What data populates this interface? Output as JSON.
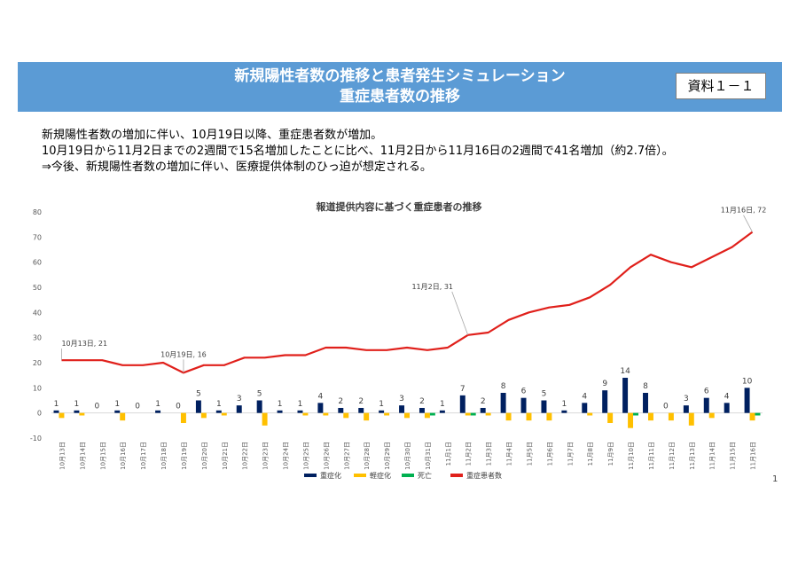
{
  "header": {
    "title_line1": "新規陽性者数の推移と患者発生シミュレーション",
    "title_line2": "重症患者数の推移",
    "doc_label": "資料１－１"
  },
  "summary": {
    "line1": "新規陽性者数の増加に伴い、10月19日以降、重症患者数が増加。",
    "line2": "10月19日から11月2日までの2週間で15名増加したことに比べ、11月2日から11月16日の2週間で41名増加（約2.7倍）。",
    "line3": "⇒今後、新規陽性者数の増加に伴い、医療提供体制のひっ迫が想定される。"
  },
  "page_number": "1",
  "colors": {
    "header_bg": "#5b9bd5",
    "severe": "#002060",
    "mild": "#ffc000",
    "death": "#00b050",
    "total": "#e0201b"
  },
  "chart_data": {
    "type": "bar+line",
    "title": "報道提供内容に基づく重症患者の推移",
    "ylim": [
      -10,
      80
    ],
    "yticks": [
      -10,
      0,
      10,
      20,
      30,
      40,
      50,
      60,
      70,
      80
    ],
    "grid": false,
    "legend_position": "bottom",
    "categories": [
      "10月13日",
      "10月14日",
      "10月15日",
      "10月16日",
      "10月17日",
      "10月18日",
      "10月19日",
      "10月20日",
      "10月21日",
      "10月22日",
      "10月23日",
      "10月24日",
      "10月25日",
      "10月26日",
      "10月27日",
      "10月28日",
      "10月29日",
      "10月30日",
      "10月31日",
      "11月1日",
      "11月2日",
      "11月3日",
      "11月4日",
      "11月5日",
      "11月6日",
      "11月7日",
      "11月8日",
      "11月9日",
      "11月10日",
      "11月11日",
      "11月12日",
      "11月13日",
      "11月14日",
      "11月15日",
      "11月16日"
    ],
    "series": [
      {
        "name": "重症化",
        "type": "bar",
        "values": [
          1,
          1,
          0,
          1,
          0,
          1,
          0,
          5,
          1,
          3,
          5,
          1,
          1,
          4,
          2,
          2,
          1,
          3,
          2,
          1,
          7,
          2,
          8,
          6,
          5,
          1,
          4,
          9,
          14,
          8,
          0,
          3,
          6,
          4,
          10
        ]
      },
      {
        "name": "軽症化",
        "type": "bar",
        "values": [
          -2,
          -1,
          0,
          -3,
          0,
          0,
          -4,
          -2,
          -1,
          0,
          -5,
          0,
          -1,
          -1,
          -2,
          -3,
          -1,
          -2,
          -2,
          0,
          -1,
          -1,
          -3,
          -3,
          -3,
          0,
          -1,
          -4,
          -6,
          -3,
          -3,
          -5,
          -2,
          0,
          -3
        ]
      },
      {
        "name": "死亡",
        "type": "bar",
        "values": [
          0,
          0,
          0,
          0,
          0,
          0,
          0,
          0,
          0,
          0,
          0,
          0,
          0,
          0,
          0,
          0,
          0,
          0,
          -1,
          0,
          -1,
          0,
          0,
          0,
          0,
          0,
          0,
          0,
          -1,
          0,
          0,
          0,
          0,
          0,
          -1
        ]
      },
      {
        "name": "重症患者数",
        "type": "line",
        "values": [
          21,
          21,
          21,
          19,
          19,
          20,
          16,
          19,
          19,
          22,
          22,
          23,
          23,
          26,
          26,
          25,
          25,
          26,
          25,
          26,
          31,
          32,
          37,
          40,
          42,
          43,
          46,
          51,
          58,
          63,
          60,
          58,
          62,
          66,
          72
        ]
      }
    ],
    "annotations": [
      {
        "index": 0,
        "text": "10月13日, 21"
      },
      {
        "index": 6,
        "text": "10月19日, 16"
      },
      {
        "index": 20,
        "text": "11月2日, 31"
      },
      {
        "index": 34,
        "text": "11月16日, 72"
      }
    ]
  }
}
